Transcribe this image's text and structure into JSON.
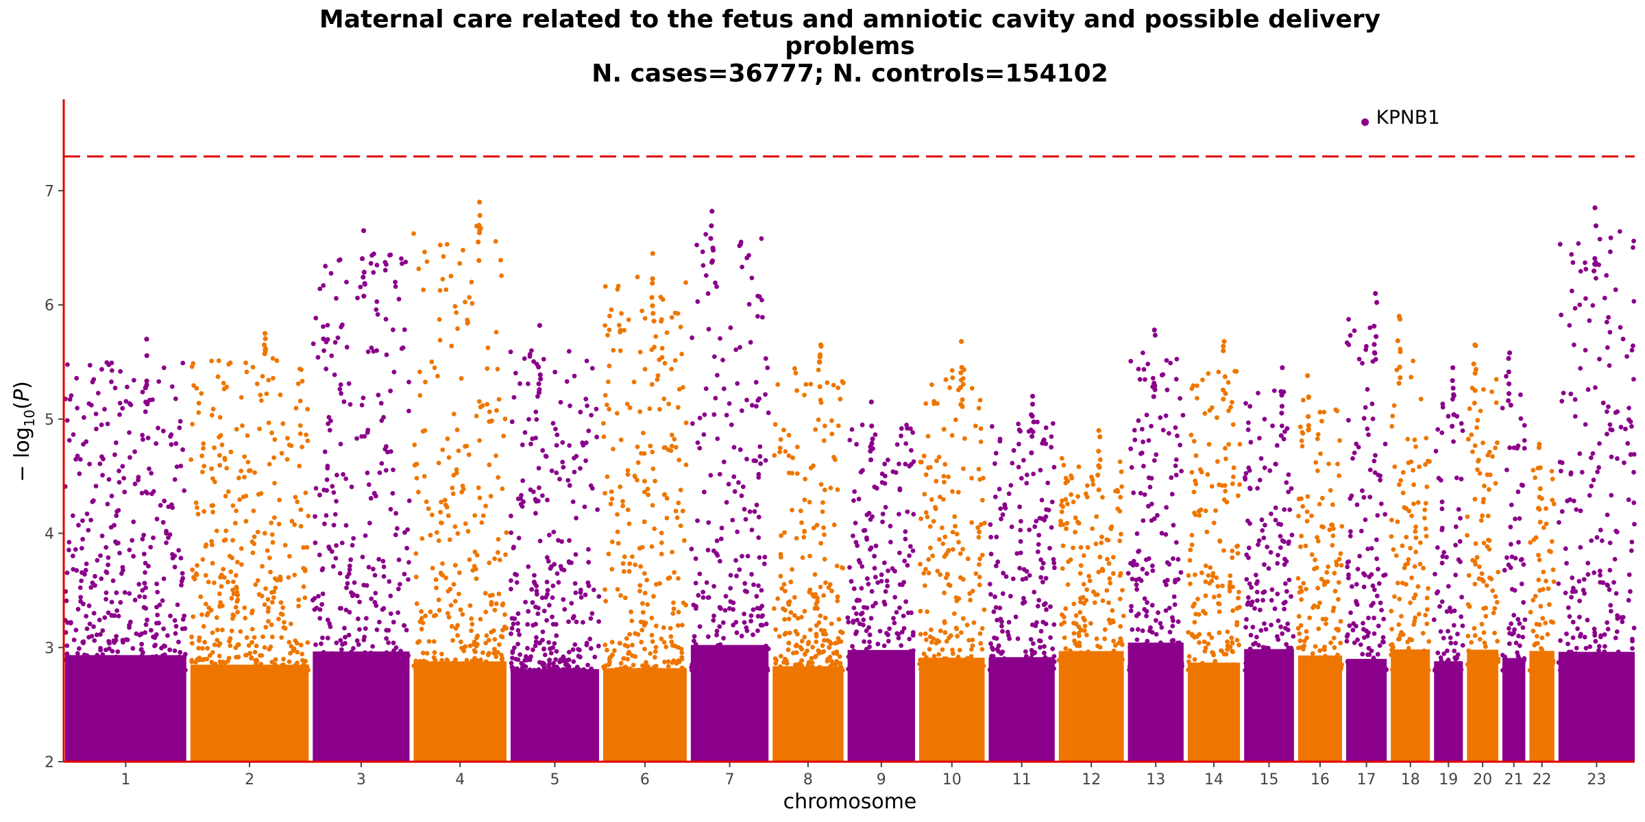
{
  "chart_data": {
    "type": "scatter",
    "subtype": "manhattan",
    "title": [
      "Maternal care related to the fetus and amniotic cavity and possible delivery",
      "problems",
      "N. cases=36777; N. controls=154102"
    ],
    "xlabel": "chromosome",
    "ylabel": "−log10(P)",
    "ylim": [
      2,
      7.8
    ],
    "yticks": [
      2,
      3,
      4,
      5,
      6,
      7
    ],
    "significance_line": 7.3,
    "colors": {
      "odd": "#8B008B",
      "even": "#EE7600",
      "axis": "#E00000",
      "threshold": "#E00000"
    },
    "grid": false,
    "legend": "none",
    "chromosomes": [
      {
        "label": "1",
        "rel": 248,
        "peak": 5.7
      },
      {
        "label": "2",
        "rel": 242,
        "peak": 5.75
      },
      {
        "label": "3",
        "rel": 198,
        "peak": 6.65
      },
      {
        "label": "4",
        "rel": 190,
        "peak": 6.9
      },
      {
        "label": "5",
        "rel": 181,
        "peak": 5.82
      },
      {
        "label": "6",
        "rel": 171,
        "peak": 6.45
      },
      {
        "label": "7",
        "rel": 159,
        "peak": 6.82
      },
      {
        "label": "8",
        "rel": 145,
        "peak": 5.65
      },
      {
        "label": "9",
        "rel": 138,
        "peak": 5.15
      },
      {
        "label": "10",
        "rel": 134,
        "peak": 5.68
      },
      {
        "label": "11",
        "rel": 135,
        "peak": 5.2
      },
      {
        "label": "12",
        "rel": 133,
        "peak": 4.9
      },
      {
        "label": "13",
        "rel": 114,
        "peak": 5.78
      },
      {
        "label": "14",
        "rel": 107,
        "peak": 5.68
      },
      {
        "label": "15",
        "rel": 102,
        "peak": 5.45
      },
      {
        "label": "16",
        "rel": 90,
        "peak": 5.38
      },
      {
        "label": "17",
        "rel": 83,
        "peak": 6.1
      },
      {
        "label": "18",
        "rel": 80,
        "peak": 5.9
      },
      {
        "label": "19",
        "rel": 59,
        "peak": 5.45
      },
      {
        "label": "20",
        "rel": 64,
        "peak": 5.65
      },
      {
        "label": "21",
        "rel": 47,
        "peak": 5.58
      },
      {
        "label": "22",
        "rel": 51,
        "peak": 4.78
      },
      {
        "label": "23",
        "rel": 156,
        "peak": 6.85
      }
    ],
    "highlighted": [
      {
        "chromosome": "17",
        "value": 7.6,
        "label": "KPNB1"
      }
    ]
  }
}
